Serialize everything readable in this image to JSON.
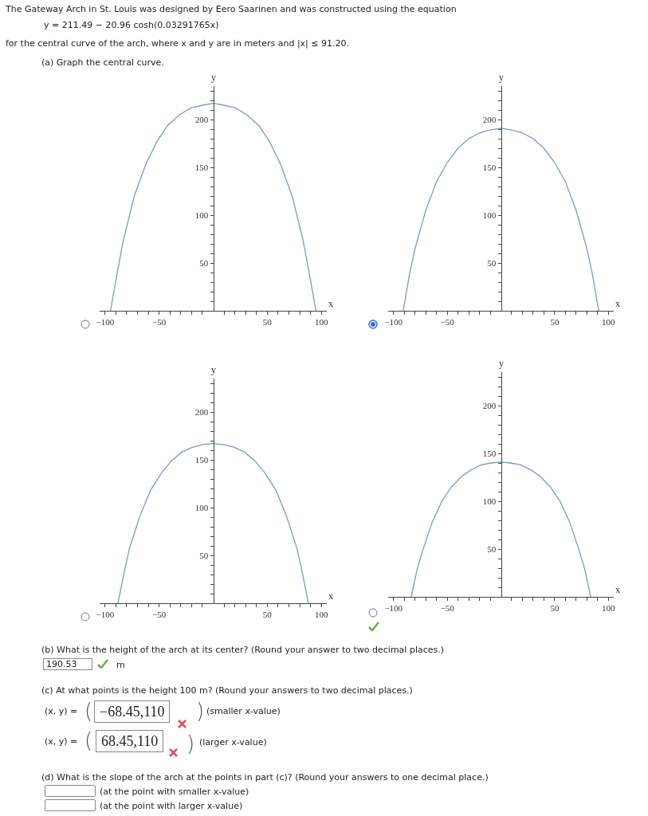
{
  "chart_data": [
    {
      "type": "line",
      "xlabel": "x",
      "ylabel": "y",
      "color": "#7b9ac9",
      "xlim": [
        -105,
        105
      ],
      "ylim": [
        0,
        235
      ],
      "x": [
        -95,
        -88,
        -83,
        -73,
        -62,
        -52,
        -42,
        -31,
        -21,
        -10,
        0,
        10,
        21,
        31,
        42,
        52,
        62,
        73,
        83,
        88,
        95
      ],
      "values": [
        0,
        44,
        74,
        120,
        154,
        177,
        194,
        205,
        212,
        215,
        217,
        215,
        212,
        205,
        194,
        177,
        154,
        120,
        74,
        44,
        0
      ],
      "xticks": [
        {
          "value": -100,
          "label": "−100"
        },
        {
          "value": -90,
          "label": null
        },
        {
          "value": -80,
          "label": null
        },
        {
          "value": -70,
          "label": null
        },
        {
          "value": -60,
          "label": null
        },
        {
          "value": -50,
          "label": "−50"
        },
        {
          "value": -40,
          "label": null
        },
        {
          "value": -30,
          "label": null
        },
        {
          "value": -20,
          "label": null
        },
        {
          "value": -10,
          "label": null
        },
        {
          "value": 10,
          "label": null
        },
        {
          "value": 20,
          "label": null
        },
        {
          "value": 30,
          "label": null
        },
        {
          "value": 40,
          "label": null
        },
        {
          "value": 50,
          "label": "50"
        },
        {
          "value": 60,
          "label": null
        },
        {
          "value": 70,
          "label": null
        },
        {
          "value": 80,
          "label": null
        },
        {
          "value": 90,
          "label": null
        },
        {
          "value": 100,
          "label": "100"
        }
      ],
      "yticks": [
        {
          "value": 10,
          "label": null
        },
        {
          "value": 20,
          "label": null
        },
        {
          "value": 30,
          "label": null
        },
        {
          "value": 40,
          "label": null
        },
        {
          "value": 50,
          "label": "50"
        },
        {
          "value": 60,
          "label": null
        },
        {
          "value": 70,
          "label": null
        },
        {
          "value": 80,
          "label": null
        },
        {
          "value": 90,
          "label": null
        },
        {
          "value": 100,
          "label": "100"
        },
        {
          "value": 110,
          "label": null
        },
        {
          "value": 120,
          "label": null
        },
        {
          "value": 130,
          "label": null
        },
        {
          "value": 140,
          "label": null
        },
        {
          "value": 150,
          "label": "150"
        },
        {
          "value": 160,
          "label": null
        },
        {
          "value": 170,
          "label": null
        },
        {
          "value": 180,
          "label": null
        },
        {
          "value": 190,
          "label": null
        },
        {
          "value": 200,
          "label": "200"
        },
        {
          "value": 210,
          "label": null
        },
        {
          "value": 220,
          "label": null
        },
        {
          "value": 230,
          "label": null
        }
      ],
      "annotations": [
        "The Gateway Arch in St. Louis was designed by Eero Saarinen and was constructed using the equation",
        "y = 211.49 − 20.96 cosh(0.03291765x)",
        "for the central curve of the arch, where x and y are in meters and  |x| ≤ 91.20.",
        "(a) Graph the central curve."
      ]
    },
    {
      "type": "line",
      "xlabel": "x",
      "ylabel": "y",
      "color": "#7b9ac9",
      "xlim": [
        -105,
        105
      ],
      "ylim": [
        0,
        235
      ],
      "x": [
        -91,
        -85,
        -80,
        -70,
        -60,
        -50,
        -40,
        -30,
        -20,
        -10,
        0,
        10,
        20,
        30,
        40,
        50,
        60,
        70,
        80,
        85,
        91
      ],
      "values": [
        0,
        39,
        65,
        105,
        135,
        155,
        170,
        180,
        186,
        189,
        191,
        189,
        186,
        180,
        170,
        155,
        135,
        105,
        65,
        39,
        0
      ],
      "xticks": [
        {
          "value": -100,
          "label": "−100"
        },
        {
          "value": -90,
          "label": null
        },
        {
          "value": -80,
          "label": null
        },
        {
          "value": -70,
          "label": null
        },
        {
          "value": -60,
          "label": null
        },
        {
          "value": -50,
          "label": "−50"
        },
        {
          "value": -40,
          "label": null
        },
        {
          "value": -30,
          "label": null
        },
        {
          "value": -20,
          "label": null
        },
        {
          "value": -10,
          "label": null
        },
        {
          "value": 10,
          "label": null
        },
        {
          "value": 20,
          "label": null
        },
        {
          "value": 30,
          "label": null
        },
        {
          "value": 40,
          "label": null
        },
        {
          "value": 50,
          "label": "50"
        },
        {
          "value": 60,
          "label": null
        },
        {
          "value": 70,
          "label": null
        },
        {
          "value": 80,
          "label": null
        },
        {
          "value": 90,
          "label": null
        },
        {
          "value": 100,
          "label": "100"
        }
      ],
      "yticks": [
        {
          "value": 10,
          "label": null
        },
        {
          "value": 20,
          "label": null
        },
        {
          "value": 30,
          "label": null
        },
        {
          "value": 40,
          "label": null
        },
        {
          "value": 50,
          "label": "50"
        },
        {
          "value": 60,
          "label": null
        },
        {
          "value": 70,
          "label": null
        },
        {
          "value": 80,
          "label": null
        },
        {
          "value": 90,
          "label": null
        },
        {
          "value": 100,
          "label": "100"
        },
        {
          "value": 110,
          "label": null
        },
        {
          "value": 120,
          "label": null
        },
        {
          "value": 130,
          "label": null
        },
        {
          "value": 140,
          "label": null
        },
        {
          "value": 150,
          "label": "150"
        },
        {
          "value": 160,
          "label": null
        },
        {
          "value": 170,
          "label": null
        },
        {
          "value": 180,
          "label": null
        },
        {
          "value": 190,
          "label": null
        },
        {
          "value": 200,
          "label": "200"
        },
        {
          "value": 210,
          "label": null
        },
        {
          "value": 220,
          "label": null
        },
        {
          "value": 230,
          "label": null
        }
      ]
    },
    {
      "type": "line",
      "xlabel": "x",
      "ylabel": "y",
      "color": "#7b9ac9",
      "xlim": [
        -105,
        105
      ],
      "ylim": [
        0,
        235
      ],
      "x": [
        -88,
        -82,
        -77.5,
        -67.5,
        -58,
        -48,
        -38.5,
        -29,
        -19.5,
        -9.5,
        0,
        9.5,
        19.5,
        29,
        38.5,
        48,
        58,
        67.5,
        77.5,
        82,
        88
      ],
      "values": [
        0,
        34,
        57,
        92,
        118,
        136,
        149,
        158,
        163,
        166,
        167,
        166,
        163,
        158,
        149,
        136,
        118,
        92,
        57,
        34,
        0
      ],
      "xticks": [
        {
          "value": -100,
          "label": "−100"
        },
        {
          "value": -90,
          "label": null
        },
        {
          "value": -80,
          "label": null
        },
        {
          "value": -70,
          "label": null
        },
        {
          "value": -60,
          "label": null
        },
        {
          "value": -50,
          "label": "−50"
        },
        {
          "value": -40,
          "label": null
        },
        {
          "value": -30,
          "label": null
        },
        {
          "value": -20,
          "label": null
        },
        {
          "value": -10,
          "label": null
        },
        {
          "value": 10,
          "label": null
        },
        {
          "value": 20,
          "label": null
        },
        {
          "value": 30,
          "label": null
        },
        {
          "value": 40,
          "label": null
        },
        {
          "value": 50,
          "label": "50"
        },
        {
          "value": 60,
          "label": null
        },
        {
          "value": 70,
          "label": null
        },
        {
          "value": 80,
          "label": null
        },
        {
          "value": 90,
          "label": null
        },
        {
          "value": 100,
          "label": "100"
        }
      ],
      "yticks": [
        {
          "value": 10,
          "label": null
        },
        {
          "value": 20,
          "label": null
        },
        {
          "value": 30,
          "label": null
        },
        {
          "value": 40,
          "label": null
        },
        {
          "value": 50,
          "label": "50"
        },
        {
          "value": 60,
          "label": null
        },
        {
          "value": 70,
          "label": null
        },
        {
          "value": 80,
          "label": null
        },
        {
          "value": 90,
          "label": null
        },
        {
          "value": 100,
          "label": "100"
        },
        {
          "value": 110,
          "label": null
        },
        {
          "value": 120,
          "label": null
        },
        {
          "value": 130,
          "label": null
        },
        {
          "value": 140,
          "label": null
        },
        {
          "value": 150,
          "label": "150"
        },
        {
          "value": 160,
          "label": null
        },
        {
          "value": 170,
          "label": null
        },
        {
          "value": 180,
          "label": null
        },
        {
          "value": 190,
          "label": null
        },
        {
          "value": 200,
          "label": "200"
        },
        {
          "value": 210,
          "label": null
        },
        {
          "value": 220,
          "label": null
        },
        {
          "value": 230,
          "label": null
        }
      ]
    },
    {
      "type": "line",
      "xlabel": "x",
      "ylabel": "y",
      "color": "#7b9ac9",
      "xlim": [
        -105,
        105
      ],
      "ylim": [
        0,
        235
      ],
      "x": [
        -83.5,
        -78,
        -73,
        -64,
        -55,
        -46,
        -36.5,
        -27.5,
        -18.5,
        -9,
        0,
        9,
        18.5,
        27.5,
        36.5,
        46,
        55,
        64,
        73,
        78,
        83.5
      ],
      "values": [
        0,
        29,
        48,
        78,
        100,
        115,
        126,
        133,
        138,
        140,
        141,
        140,
        138,
        133,
        126,
        115,
        100,
        78,
        48,
        29,
        0
      ],
      "xticks": [
        {
          "value": -100,
          "label": "−100"
        },
        {
          "value": -90,
          "label": null
        },
        {
          "value": -80,
          "label": null
        },
        {
          "value": -70,
          "label": null
        },
        {
          "value": -60,
          "label": null
        },
        {
          "value": -50,
          "label": "−50"
        },
        {
          "value": -40,
          "label": null
        },
        {
          "value": -30,
          "label": null
        },
        {
          "value": -20,
          "label": null
        },
        {
          "value": -10,
          "label": null
        },
        {
          "value": 10,
          "label": null
        },
        {
          "value": 20,
          "label": null
        },
        {
          "value": 30,
          "label": null
        },
        {
          "value": 40,
          "label": null
        },
        {
          "value": 50,
          "label": "50"
        },
        {
          "value": 60,
          "label": null
        },
        {
          "value": 70,
          "label": null
        },
        {
          "value": 80,
          "label": null
        },
        {
          "value": 90,
          "label": null
        },
        {
          "value": 100,
          "label": "100"
        }
      ],
      "yticks": [
        {
          "value": 10,
          "label": null
        },
        {
          "value": 20,
          "label": null
        },
        {
          "value": 30,
          "label": null
        },
        {
          "value": 40,
          "label": null
        },
        {
          "value": 50,
          "label": "50"
        },
        {
          "value": 60,
          "label": null
        },
        {
          "value": 70,
          "label": null
        },
        {
          "value": 80,
          "label": null
        },
        {
          "value": 90,
          "label": null
        },
        {
          "value": 100,
          "label": "100"
        },
        {
          "value": 110,
          "label": null
        },
        {
          "value": 120,
          "label": null
        },
        {
          "value": 130,
          "label": null
        },
        {
          "value": 140,
          "label": null
        },
        {
          "value": 150,
          "label": "150"
        },
        {
          "value": 160,
          "label": null
        },
        {
          "value": 170,
          "label": null
        },
        {
          "value": 180,
          "label": null
        },
        {
          "value": 190,
          "label": null
        },
        {
          "value": 200,
          "label": "200"
        },
        {
          "value": 210,
          "label": null
        },
        {
          "value": 220,
          "label": null
        },
        {
          "value": 230,
          "label": null
        }
      ],
      "annotations": [
        "(b) What is the height of the arch at its center? (Round your answer to two decimal places.)",
        "190.53",
        "m",
        "(c) At what points is the height 100 m? (Round your answers to two decimal places.)",
        "(x, y) =",
        "(",
        "−68.45,110",
        ")",
        "(smaller x-value)",
        "(x, y) =",
        "(",
        "68.45,110",
        ")",
        "(larger x-value)",
        "(d) What is the slope of the arch at the points in part (c)? (Round your answers to one decimal place.)",
        "(at the point with smaller x-value)",
        "(at the point with larger x-value)"
      ]
    }
  ]
}
